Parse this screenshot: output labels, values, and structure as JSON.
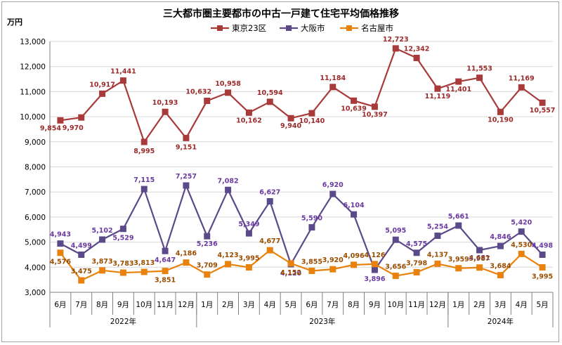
{
  "chart_data": {
    "type": "line",
    "title": "三大都市圏主要都市の中古一戸建て住宅平均価格推移",
    "ylabel": "万円",
    "ylim": [
      3000,
      13000
    ],
    "yticks": [
      "3,000",
      "4,000",
      "5,000",
      "6,000",
      "7,000",
      "8,000",
      "9,000",
      "10,000",
      "11,000",
      "12,000",
      "13,000"
    ],
    "categories": [
      "6月",
      "7月",
      "8月",
      "9月",
      "10月",
      "11月",
      "12月",
      "1月",
      "2月",
      "3月",
      "4月",
      "5月",
      "6月",
      "7月",
      "8月",
      "9月",
      "10月",
      "11月",
      "12月",
      "1月",
      "2月",
      "3月",
      "4月",
      "5月"
    ],
    "year_groups": [
      {
        "label": "2022年",
        "start": 0,
        "end": 6
      },
      {
        "label": "2023年",
        "start": 7,
        "end": 18
      },
      {
        "label": "2024年",
        "start": 19,
        "end": 23
      }
    ],
    "legend_position": "top",
    "series": [
      {
        "name": "東京23区",
        "color": "#a83a3a",
        "values": [
          9854,
          9970,
          10917,
          11441,
          8995,
          10193,
          9151,
          10632,
          10958,
          10162,
          10594,
          9940,
          10140,
          11184,
          10639,
          10397,
          12723,
          12342,
          11119,
          11401,
          11553,
          10190,
          11169,
          10557
        ],
        "labels": [
          "9,854",
          "9,970",
          "10,917",
          "11,441",
          "8,995",
          "10,193",
          "9,151",
          "10,632",
          "10,958",
          "10,162",
          "10,594",
          "9,940",
          "10,140",
          "11,184",
          "10,639",
          "10,397",
          "12,723",
          "12,342",
          "11,119",
          "11,401",
          "11,553",
          "10,190",
          "11,169",
          "10,557"
        ]
      },
      {
        "name": "大阪市",
        "color": "#5b4a8a",
        "values": [
          4943,
          4499,
          5102,
          5529,
          7115,
          4647,
          7257,
          5236,
          7082,
          5349,
          6627,
          4120,
          5590,
          6920,
          6104,
          3896,
          5095,
          4575,
          5254,
          5661,
          4681,
          4846,
          5420,
          4498
        ],
        "labels": [
          "4,943",
          "4,499",
          "5,102",
          "5,529",
          "7,115",
          "4,647",
          "7,257",
          "5,236",
          "7,082",
          "5,349",
          "6,627",
          "4,120",
          "5,590",
          "6,920",
          "6,104",
          "3,896",
          "5,095",
          "4,575",
          "5,254",
          "5,661",
          "4,681",
          "4,846",
          "5,420",
          "4,498"
        ]
      },
      {
        "name": "名古屋市",
        "color": "#e8820c",
        "values": [
          4576,
          3475,
          3873,
          3783,
          3813,
          3851,
          4186,
          3709,
          4123,
          3995,
          4677,
          4152,
          3855,
          3920,
          4096,
          4126,
          3656,
          3798,
          4137,
          3959,
          3987,
          3684,
          4530,
          3995
        ],
        "labels": [
          "4,576",
          "3,475",
          "3,873",
          "3,783",
          "3,813",
          "3,851",
          "4,186",
          "3,709",
          "4,123",
          "3,995",
          "4,677",
          "4,152",
          "3,855",
          "3,920",
          "4,096",
          "4,126",
          "3,656",
          "3,798",
          "4,137",
          "3,959",
          "3,987",
          "3,684",
          "4,530",
          "3,995"
        ]
      }
    ]
  }
}
